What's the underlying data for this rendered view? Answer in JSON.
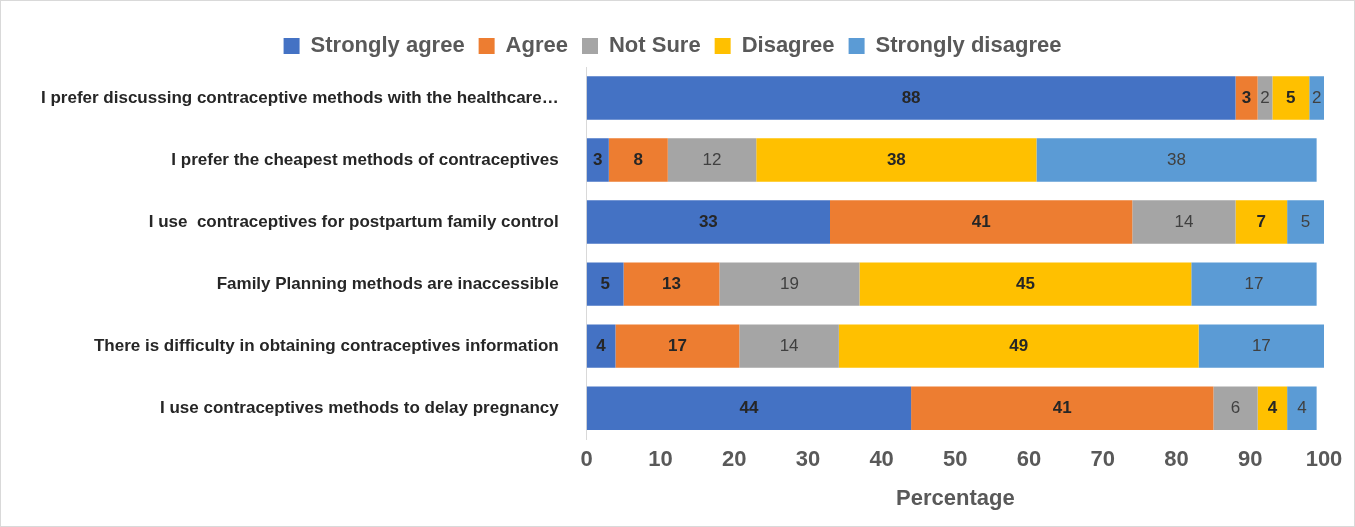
{
  "chart_data": {
    "type": "bar",
    "orientation": "horizontal",
    "stacked": true,
    "xlabel": "Percentage",
    "categories": [
      "I prefer discussing contraceptive methods with the healthcare…",
      "I prefer the cheapest methods of contraceptives",
      "I use  contraceptives for postpartum family control",
      "Family Planning methods are inaccessible",
      "There is difficulty in obtaining contraceptives information",
      "I use contraceptives methods to delay pregnancy"
    ],
    "series": [
      {
        "name": "Strongly agree",
        "color": "#4472c4",
        "values": [
          88,
          3,
          33,
          5,
          3.9,
          44
        ],
        "value_labels": [
          "88",
          "3",
          "33",
          "5",
          "4",
          "44"
        ]
      },
      {
        "name": "Agree",
        "color": "#ed7d31",
        "values": [
          3,
          8,
          41,
          13,
          16.8,
          41
        ],
        "value_labels": [
          "3",
          "8",
          "41",
          "13",
          "17",
          "41"
        ]
      },
      {
        "name": "Not Sure",
        "color": "#a5a5a5",
        "values": [
          2,
          12,
          14,
          19,
          13.5,
          6
        ],
        "value_labels": [
          "2",
          "12",
          "14",
          "19",
          "14",
          "6"
        ]
      },
      {
        "name": "Disagree",
        "color": "#ffc000",
        "values": [
          5,
          38,
          7,
          45,
          48.8,
          4
        ],
        "value_labels": [
          "5",
          "38",
          "7",
          "45",
          "49",
          "4"
        ]
      },
      {
        "name": "Strongly disagree",
        "color": "#5b9bd5",
        "values": [
          2,
          38,
          5,
          17,
          17,
          4
        ],
        "value_labels": [
          "2",
          "38",
          "5",
          "17",
          "17",
          "4"
        ]
      }
    ],
    "xlim": [
      0,
      100
    ],
    "xticks": [
      0,
      10,
      20,
      30,
      40,
      50,
      60,
      70,
      80,
      90,
      100
    ],
    "legend": "top"
  }
}
